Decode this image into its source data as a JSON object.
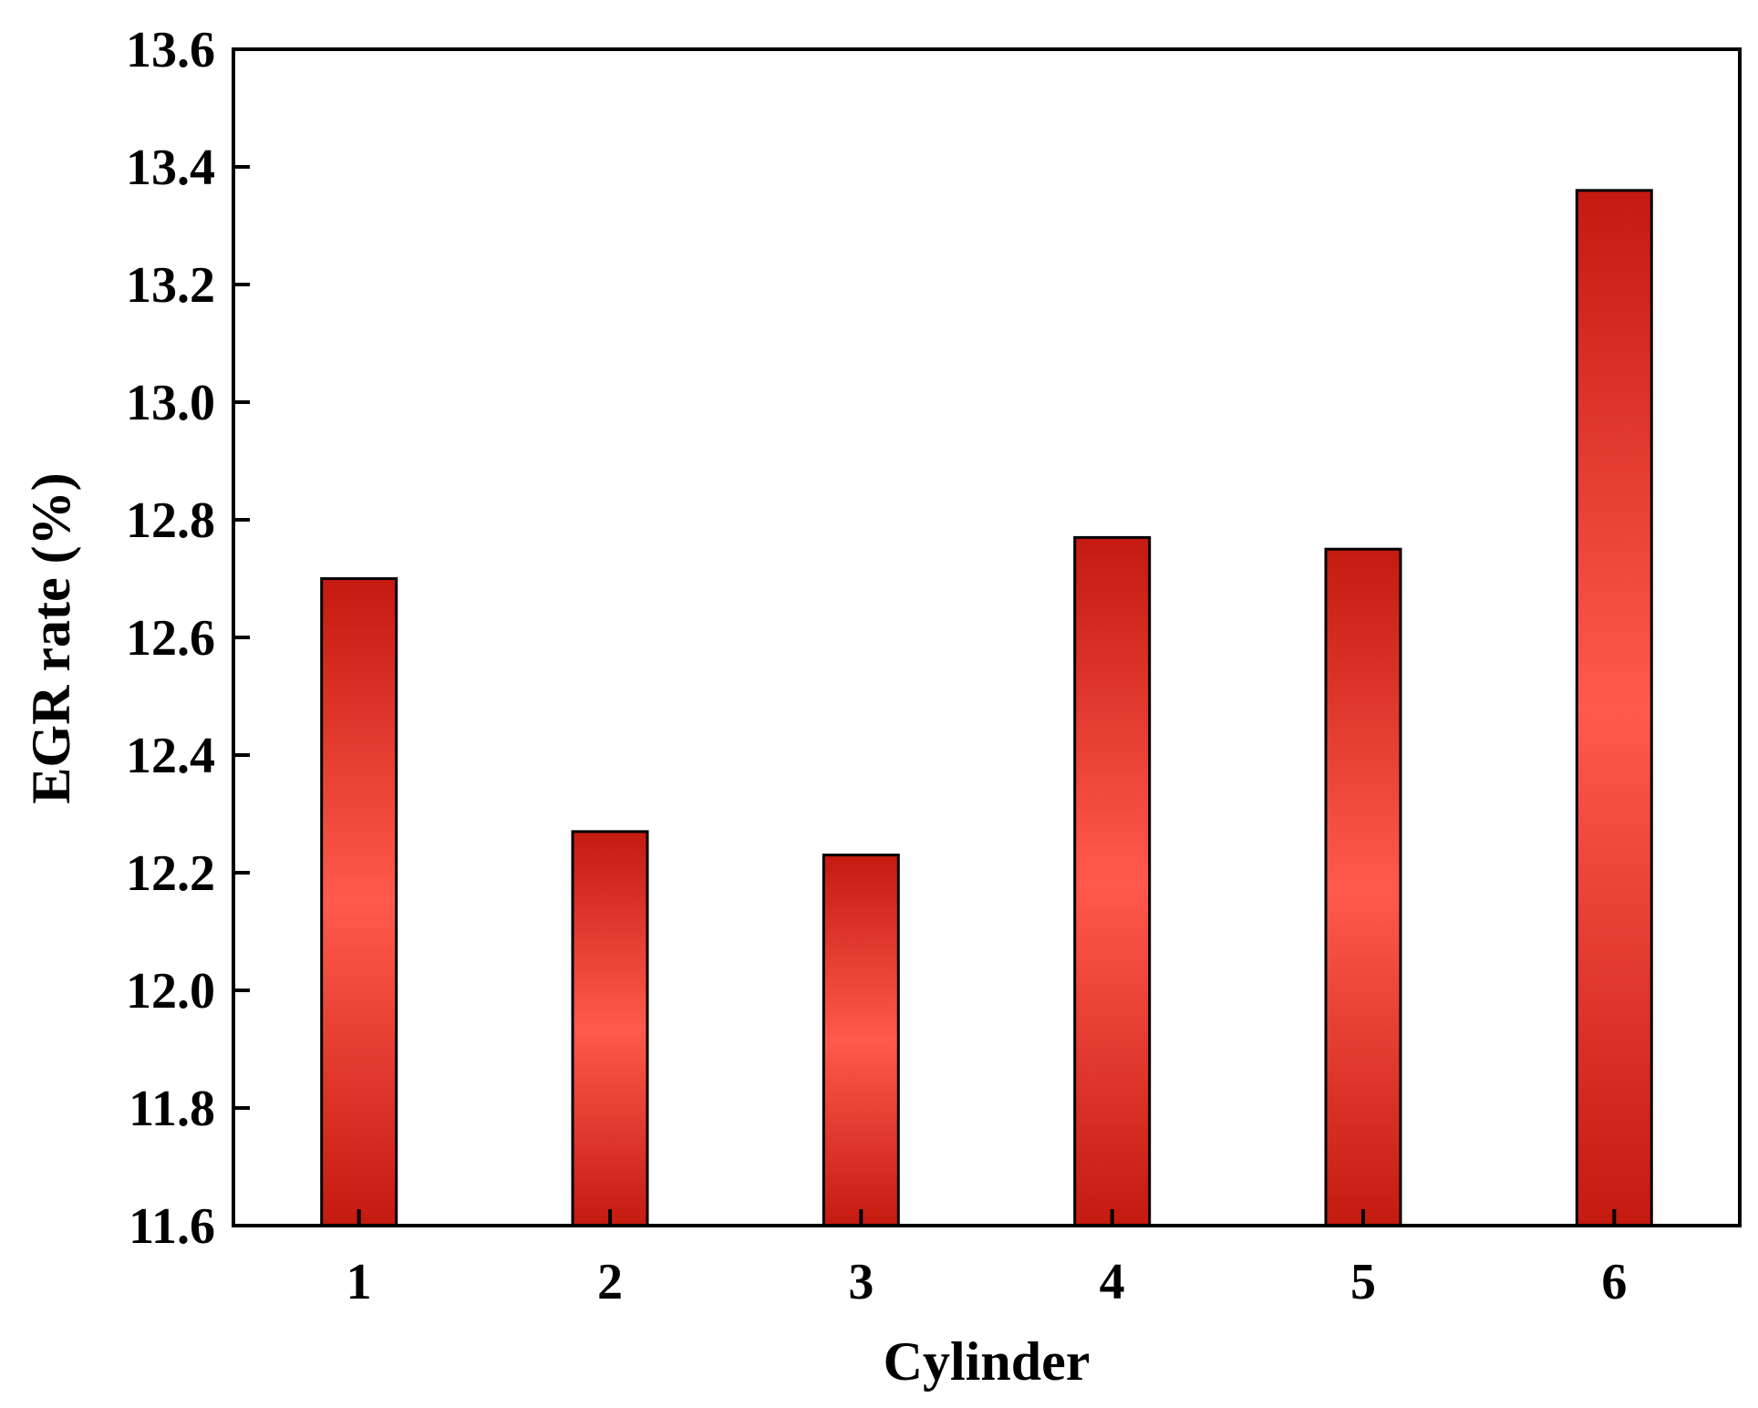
{
  "chart_data": {
    "type": "bar",
    "title": "",
    "xlabel": "Cylinder",
    "ylabel": "EGR rate (%)",
    "categories": [
      "1",
      "2",
      "3",
      "4",
      "5",
      "6"
    ],
    "values": [
      12.7,
      12.27,
      12.23,
      12.77,
      12.75,
      13.36
    ],
    "ylim": [
      11.6,
      13.6
    ],
    "yticks": [
      "11.6",
      "11.8",
      "12.0",
      "12.2",
      "12.4",
      "12.6",
      "12.8",
      "13.0",
      "13.2",
      "13.4",
      "13.6"
    ],
    "grid": false,
    "legend": "none",
    "colors": {
      "bar_edge": "#c41a10",
      "bar_center": "#ff5a4c",
      "outline": "#000000"
    }
  }
}
